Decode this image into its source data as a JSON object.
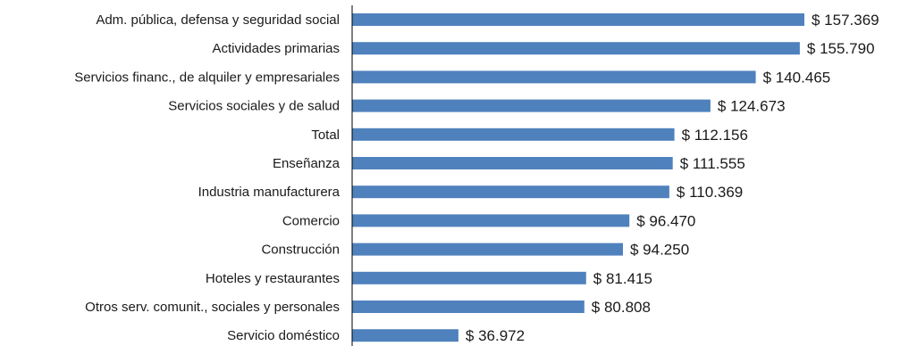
{
  "chart_data": {
    "type": "bar",
    "orientation": "horizontal",
    "title": "",
    "xlabel": "",
    "ylabel": "",
    "value_prefix": "$ ",
    "categories": [
      "Adm. pública, defensa y seguridad social",
      "Actividades primarias",
      "Servicios financ., de alquiler y empresariales",
      "Servicios sociales y de salud",
      "Total",
      "Enseñanza",
      "Industria manufacturera",
      "Comercio",
      "Construcción",
      "Hoteles y restaurantes",
      "Otros serv. comunit., sociales y personales",
      "Servicio doméstico"
    ],
    "values": [
      157369,
      155790,
      140465,
      124673,
      112156,
      111555,
      110369,
      96470,
      94250,
      81415,
      80808,
      36972
    ],
    "value_labels": [
      "$ 157.369",
      "$ 155.790",
      "$ 140.465",
      "$ 124.673",
      "$ 112.156",
      "$ 111.555",
      "$ 110.369",
      "$ 96.470",
      "$ 94.250",
      "$ 81.415",
      "$ 80.808",
      "$ 36.972"
    ],
    "xlim": [
      0,
      157369
    ],
    "grid": false,
    "legend": "none",
    "bar_color": "#4f81bd"
  }
}
